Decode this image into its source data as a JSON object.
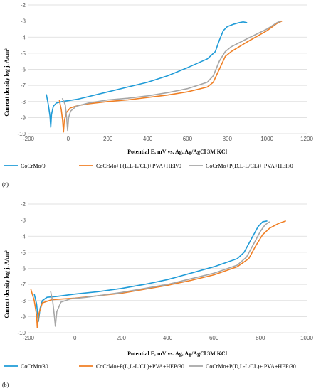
{
  "chart_data": [
    {
      "type": "line",
      "panel_label": "(a)",
      "xlabel": "Potential E, mV vs. Ag, Ag/AgCl 3M KCl",
      "ylabel": "Current density log j, A/cm²",
      "xlim": [
        -200,
        1200
      ],
      "ylim": [
        -10,
        -2
      ],
      "x_ticks": [
        -200,
        0,
        200,
        400,
        600,
        800,
        1000,
        1200
      ],
      "y_ticks": [
        -2,
        -3,
        -4,
        -5,
        -6,
        -7,
        -8,
        -9,
        -10
      ],
      "grid": "horizontal",
      "legend_position": "bottom",
      "series": [
        {
          "name": "CoCrMo/0",
          "color": "#1f9bd7",
          "points": [
            [
              -110,
              -7.55
            ],
            [
              -100,
              -8.2
            ],
            [
              -92,
              -8.9
            ],
            [
              -88,
              -9.6
            ],
            [
              -84,
              -8.8
            ],
            [
              -75,
              -8.3
            ],
            [
              -60,
              -8.1
            ],
            [
              -30,
              -8.0
            ],
            [
              0,
              -7.95
            ],
            [
              50,
              -7.85
            ],
            [
              100,
              -7.7
            ],
            [
              200,
              -7.4
            ],
            [
              300,
              -7.1
            ],
            [
              400,
              -6.8
            ],
            [
              500,
              -6.4
            ],
            [
              600,
              -5.9
            ],
            [
              700,
              -5.35
            ],
            [
              740,
              -4.9
            ],
            [
              760,
              -4.2
            ],
            [
              780,
              -3.6
            ],
            [
              800,
              -3.35
            ],
            [
              830,
              -3.2
            ],
            [
              860,
              -3.1
            ],
            [
              880,
              -3.05
            ],
            [
              900,
              -3.1
            ]
          ]
        },
        {
          "name": "CoCrMo+P(L,L-L/CL)+PVA+HEP/0",
          "color": "#f07f24",
          "points": [
            [
              -45,
              -7.9
            ],
            [
              -35,
              -8.5
            ],
            [
              -28,
              -9.2
            ],
            [
              -24,
              -9.9
            ],
            [
              -20,
              -9.2
            ],
            [
              -10,
              -8.7
            ],
            [
              10,
              -8.4
            ],
            [
              50,
              -8.25
            ],
            [
              100,
              -8.15
            ],
            [
              200,
              -8.0
            ],
            [
              300,
              -7.9
            ],
            [
              400,
              -7.75
            ],
            [
              500,
              -7.6
            ],
            [
              600,
              -7.4
            ],
            [
              700,
              -7.1
            ],
            [
              730,
              -6.8
            ],
            [
              760,
              -6.0
            ],
            [
              790,
              -5.2
            ],
            [
              820,
              -4.9
            ],
            [
              900,
              -4.3
            ],
            [
              1000,
              -3.6
            ],
            [
              1050,
              -3.15
            ],
            [
              1075,
              -3.0
            ]
          ]
        },
        {
          "name": "CoCrMo+P(D,L-L/CL)+ PVA+HEP/0",
          "color": "#a6a6a6",
          "points": [
            [
              -30,
              -7.8
            ],
            [
              -15,
              -8.2
            ],
            [
              -8,
              -9.0
            ],
            [
              -3,
              -9.8
            ],
            [
              2,
              -9.0
            ],
            [
              12,
              -8.6
            ],
            [
              40,
              -8.3
            ],
            [
              100,
              -8.1
            ],
            [
              200,
              -7.9
            ],
            [
              300,
              -7.8
            ],
            [
              400,
              -7.65
            ],
            [
              500,
              -7.45
            ],
            [
              600,
              -7.2
            ],
            [
              700,
              -6.8
            ],
            [
              730,
              -6.4
            ],
            [
              760,
              -5.5
            ],
            [
              790,
              -4.9
            ],
            [
              820,
              -4.6
            ],
            [
              900,
              -4.1
            ],
            [
              1000,
              -3.5
            ],
            [
              1050,
              -3.1
            ],
            [
              1070,
              -3.0
            ]
          ]
        }
      ]
    },
    {
      "type": "line",
      "panel_label": "(b)",
      "xlabel": "Potential E, mV vs. Ag, Ag/AgCl 3M KCl",
      "ylabel": "Current density log j, A/cm²",
      "xlim": [
        -200,
        1000
      ],
      "ylim": [
        -10,
        -2
      ],
      "x_ticks": [
        -200,
        0,
        200,
        400,
        600,
        800,
        1000
      ],
      "y_ticks": [
        -2,
        -3,
        -4,
        -5,
        -6,
        -7,
        -8,
        -9,
        -10
      ],
      "grid": "horizontal",
      "legend_position": "bottom",
      "series": [
        {
          "name": "CoCrMo/30",
          "color": "#1f9bd7",
          "points": [
            [
              -175,
              -7.6
            ],
            [
              -165,
              -8.2
            ],
            [
              -160,
              -8.9
            ],
            [
              -157,
              -9.3
            ],
            [
              -150,
              -8.5
            ],
            [
              -140,
              -8.0
            ],
            [
              -120,
              -7.8
            ],
            [
              -80,
              -7.75
            ],
            [
              0,
              -7.6
            ],
            [
              100,
              -7.45
            ],
            [
              200,
              -7.25
            ],
            [
              300,
              -7.0
            ],
            [
              400,
              -6.7
            ],
            [
              500,
              -6.3
            ],
            [
              600,
              -5.9
            ],
            [
              700,
              -5.4
            ],
            [
              730,
              -5.0
            ],
            [
              760,
              -4.2
            ],
            [
              790,
              -3.4
            ],
            [
              810,
              -3.1
            ],
            [
              830,
              -3.05
            ]
          ]
        },
        {
          "name": "CoCrMo+P(L,L-L/CL)+PVA+HEP/30",
          "color": "#f07f24",
          "points": [
            [
              -190,
              -7.3
            ],
            [
              -175,
              -8.0
            ],
            [
              -165,
              -8.9
            ],
            [
              -162,
              -9.7
            ],
            [
              -155,
              -8.8
            ],
            [
              -140,
              -8.15
            ],
            [
              -100,
              -7.95
            ],
            [
              0,
              -7.85
            ],
            [
              100,
              -7.7
            ],
            [
              200,
              -7.55
            ],
            [
              300,
              -7.3
            ],
            [
              400,
              -7.05
            ],
            [
              500,
              -6.75
            ],
            [
              600,
              -6.4
            ],
            [
              700,
              -5.9
            ],
            [
              750,
              -5.4
            ],
            [
              780,
              -4.6
            ],
            [
              810,
              -3.9
            ],
            [
              840,
              -3.5
            ],
            [
              880,
              -3.2
            ],
            [
              910,
              -3.05
            ]
          ]
        },
        {
          "name": "CoCrMo+P(D,L-L/CL)+ PVA+HEP/30",
          "color": "#a6a6a6",
          "points": [
            [
              -105,
              -7.4
            ],
            [
              -95,
              -8.1
            ],
            [
              -88,
              -9.0
            ],
            [
              -84,
              -9.6
            ],
            [
              -78,
              -8.7
            ],
            [
              -60,
              -8.1
            ],
            [
              -20,
              -7.9
            ],
            [
              50,
              -7.8
            ],
            [
              100,
              -7.7
            ],
            [
              200,
              -7.5
            ],
            [
              300,
              -7.25
            ],
            [
              400,
              -7.0
            ],
            [
              500,
              -6.65
            ],
            [
              600,
              -6.3
            ],
            [
              700,
              -5.8
            ],
            [
              740,
              -5.3
            ],
            [
              770,
              -4.5
            ],
            [
              800,
              -3.7
            ],
            [
              820,
              -3.3
            ],
            [
              840,
              -3.1
            ]
          ]
        }
      ]
    }
  ]
}
